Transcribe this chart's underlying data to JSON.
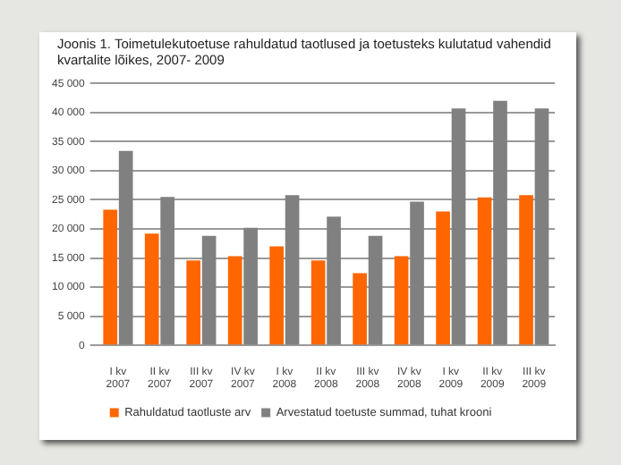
{
  "chart_data": {
    "type": "bar",
    "title": "Joonis 1.  Toimetulekutoetuse rahuldatud taotlused ja toetusteks kulutatud vahendid kvartalite lõikes, 2007- 2009",
    "categories": [
      [
        "I kv",
        "2007"
      ],
      [
        "II kv",
        "2007"
      ],
      [
        "III kv",
        "2007"
      ],
      [
        "IV kv",
        "2007"
      ],
      [
        "I kv",
        "2008"
      ],
      [
        "II kv",
        "2008"
      ],
      [
        "III kv",
        "2008"
      ],
      [
        "IV kv",
        "2008"
      ],
      [
        "I kv",
        "2009"
      ],
      [
        "II kv",
        "2009"
      ],
      [
        "III kv",
        "2009"
      ]
    ],
    "series": [
      {
        "name": "Rahuldatud taotluste arv",
        "color": "#ff6600",
        "values": [
          23300,
          19200,
          14600,
          15300,
          17000,
          14600,
          12400,
          15300,
          23000,
          25400,
          25800
        ]
      },
      {
        "name": "Arvestatud toetuste summad, tuhat krooni",
        "color": "#808080",
        "values": [
          33400,
          25500,
          18800,
          20200,
          25800,
          22100,
          18800,
          24700,
          40700,
          42000,
          40700
        ]
      }
    ],
    "ylim": [
      0,
      45000
    ],
    "yticks": [
      0,
      {
        "value": 5000,
        "label": "5 000"
      },
      {
        "value": 10000,
        "label": "10 000"
      },
      {
        "value": 15000,
        "label": "15 000"
      },
      {
        "value": 20000,
        "label": "20 000"
      },
      {
        "value": 25000,
        "label": "25 000"
      },
      {
        "value": 30000,
        "label": "30 000"
      },
      {
        "value": 35000,
        "label": "35 000"
      },
      {
        "value": 40000,
        "label": "40 000"
      },
      {
        "value": 45000,
        "label": "45 000"
      }
    ],
    "grid": "y",
    "legend": "bottom"
  }
}
